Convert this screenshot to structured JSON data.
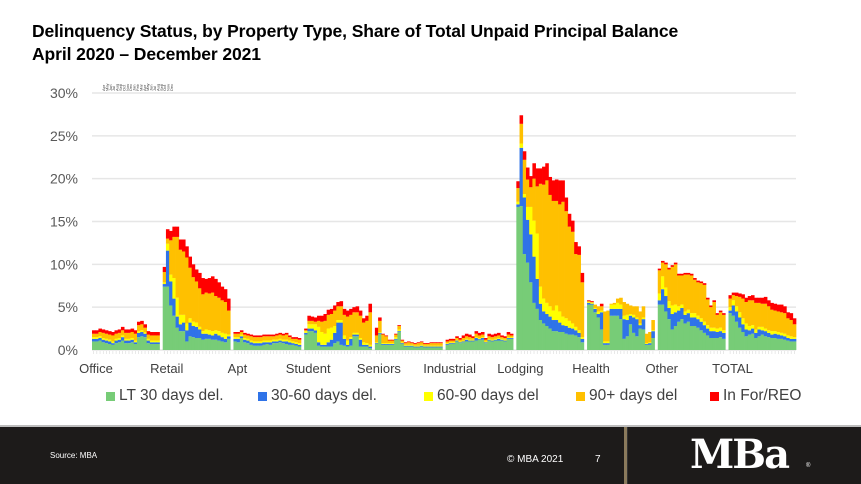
{
  "header": {
    "title_line1": "Delinquency Status, by Property Type, Share of Total Unpaid Principal Balance",
    "title_line2": "April 2020 – December 2021"
  },
  "footer": {
    "source": "Source: MBA",
    "copyright": "© MBA 2021",
    "page_number": "7",
    "logo_text": "MBa",
    "logo_reg": "®"
  },
  "chart_data": {
    "type": "bar",
    "stacked": true,
    "title": "Delinquency Status, by Property Type, Share of Total Unpaid Principal Balance",
    "subtitle": "April 2020 – December 2021",
    "xlabel": "",
    "ylabel": "",
    "ylim": [
      0,
      30
    ],
    "yticks": [
      "0%",
      "5%",
      "10%",
      "15%",
      "20%",
      "25%",
      "30%"
    ],
    "ytick_values": [
      0,
      5,
      10,
      15,
      20,
      25,
      30
    ],
    "grid": true,
    "legend_position": "bottom",
    "month_labels": [
      "Apr",
      "May",
      "Jun",
      "Jul",
      "Aug",
      "Sep",
      "Oct",
      "Nov",
      "Dec",
      "Jan",
      "Feb",
      "Mar",
      "Apr",
      "May",
      "Jun",
      "Jul",
      "Aug",
      "Sep",
      "Oct",
      "Nov",
      "Dec"
    ],
    "categories": [
      "Office",
      "Retail",
      "Apt",
      "Student",
      "Seniors",
      "Industrial",
      "Lodging",
      "Health",
      "Other",
      "TOTAL"
    ],
    "series_names": [
      "LT 30 days del.",
      "30-60 days del.",
      "60-90 days del",
      "90+ days del",
      "In For/REO"
    ],
    "series_colors": [
      "#77cc77",
      "#2f73e8",
      "#ffff00",
      "#ffc000",
      "#ff0000"
    ],
    "groups": [
      {
        "name": "Office",
        "LT30": [
          1.0,
          1.0,
          1.1,
          0.9,
          0.8,
          0.7,
          0.6,
          0.8,
          0.9,
          1.1,
          0.8,
          0.8,
          0.9,
          0.7,
          1.5,
          1.6,
          1.5,
          0.8,
          0.7,
          0.7,
          0.7
        ],
        "d30_60": [
          0.3,
          0.3,
          0.3,
          0.3,
          0.3,
          0.3,
          0.2,
          0.3,
          0.3,
          0.4,
          0.3,
          0.3,
          0.3,
          0.2,
          0.5,
          0.5,
          0.4,
          0.3,
          0.2,
          0.2,
          0.2
        ],
        "d60_90": [
          0.2,
          0.2,
          0.2,
          0.2,
          0.2,
          0.2,
          0.2,
          0.2,
          0.2,
          0.2,
          0.2,
          0.2,
          0.2,
          0.2,
          0.2,
          0.2,
          0.2,
          0.2,
          0.2,
          0.2,
          0.2
        ],
        "d90p": [
          0.4,
          0.4,
          0.5,
          0.6,
          0.6,
          0.6,
          0.7,
          0.6,
          0.6,
          0.6,
          0.7,
          0.7,
          0.7,
          0.8,
          0.7,
          0.7,
          0.5,
          0.5,
          0.6,
          0.6,
          0.6
        ],
        "reo": [
          0.4,
          0.4,
          0.4,
          0.4,
          0.4,
          0.4,
          0.4,
          0.4,
          0.4,
          0.4,
          0.4,
          0.4,
          0.4,
          0.4,
          0.4,
          0.4,
          0.4,
          0.4,
          0.4,
          0.4,
          0.4
        ]
      },
      {
        "name": "Retail",
        "LT30": [
          7.4,
          7.4,
          5.2,
          4.0,
          2.6,
          2.2,
          2.2,
          1.0,
          1.6,
          1.5,
          1.4,
          1.4,
          1.2,
          1.3,
          1.3,
          1.2,
          1.2,
          1.1,
          1.0,
          0.9,
          1.3
        ],
        "d30_60": [
          0.3,
          4.2,
          2.8,
          2.0,
          1.3,
          0.8,
          1.0,
          1.3,
          1.6,
          1.3,
          1.3,
          1.0,
          0.7,
          0.6,
          0.5,
          0.5,
          0.7,
          0.6,
          0.5,
          0.4,
          0.3
        ],
        "d60_90": [
          0.2,
          0.8,
          0.8,
          2.4,
          2.2,
          1.1,
          0.9,
          0.8,
          0.5,
          0.5,
          0.5,
          0.3,
          0.3,
          0.5,
          0.5,
          0.5,
          0.4,
          0.5,
          0.5,
          0.6,
          0.2
        ],
        "d90p": [
          1.2,
          0.6,
          4.0,
          4.8,
          7.1,
          7.6,
          7.4,
          7.7,
          5.9,
          5.2,
          4.8,
          4.5,
          4.3,
          4.3,
          4.3,
          4.5,
          4.0,
          3.9,
          3.8,
          3.7,
          2.8
        ],
        "reo": [
          0.6,
          1.1,
          1.1,
          1.2,
          1.2,
          1.2,
          1.4,
          1.3,
          1.3,
          1.5,
          1.4,
          1.8,
          1.9,
          1.6,
          1.8,
          1.9,
          2.0,
          1.8,
          1.6,
          1.5,
          1.4
        ]
      },
      {
        "name": "Apt",
        "LT30": [
          1.0,
          0.9,
          1.4,
          0.9,
          0.8,
          0.6,
          0.5,
          0.5,
          0.5,
          0.6,
          0.7,
          0.6,
          0.8,
          0.8,
          0.9,
          0.8,
          0.7,
          0.6,
          0.6,
          0.5,
          0.4
        ],
        "d30_60": [
          0.3,
          0.4,
          0.2,
          0.3,
          0.3,
          0.3,
          0.3,
          0.3,
          0.3,
          0.3,
          0.2,
          0.3,
          0.2,
          0.2,
          0.2,
          0.2,
          0.3,
          0.3,
          0.2,
          0.2,
          0.2
        ],
        "d60_90": [
          0.2,
          0.2,
          0.2,
          0.2,
          0.2,
          0.2,
          0.2,
          0.2,
          0.2,
          0.2,
          0.2,
          0.2,
          0.2,
          0.2,
          0.2,
          0.2,
          0.2,
          0.2,
          0.2,
          0.2,
          0.2
        ],
        "d90p": [
          0.4,
          0.4,
          0.3,
          0.4,
          0.4,
          0.5,
          0.5,
          0.5,
          0.5,
          0.5,
          0.5,
          0.5,
          0.4,
          0.5,
          0.5,
          0.5,
          0.6,
          0.4,
          0.3,
          0.4,
          0.4
        ],
        "reo": [
          0.2,
          0.2,
          0.2,
          0.2,
          0.2,
          0.2,
          0.2,
          0.2,
          0.2,
          0.2,
          0.2,
          0.2,
          0.2,
          0.2,
          0.2,
          0.2,
          0.2,
          0.2,
          0.2,
          0.2,
          0.2
        ]
      },
      {
        "name": "Student",
        "LT30": [
          1.8,
          2.2,
          2.2,
          2.0,
          0.5,
          0.4,
          0.4,
          0.4,
          0.4,
          0.8,
          1.0,
          0.6,
          0.5,
          0.4,
          0.5,
          1.6,
          1.6,
          0.4,
          0.4,
          0.4,
          0.2
        ],
        "d30_60": [
          0.2,
          0.3,
          0.3,
          0.3,
          0.4,
          0.2,
          0.2,
          0.5,
          0.8,
          1.2,
          2.2,
          2.6,
          0.8,
          0.2,
          0.8,
          0.2,
          0.2,
          0.8,
          0.2,
          0.2,
          0.2
        ],
        "d60_90": [
          0.2,
          0.5,
          0.5,
          0.7,
          1.8,
          1.5,
          1.3,
          1.6,
          1.4,
          0.8,
          0.3,
          0.3,
          0.4,
          0.5,
          0.2,
          0.2,
          0.2,
          0.2,
          0.3,
          0.2,
          0.2
        ],
        "d90p": [
          0.1,
          0.4,
          0.4,
          0.3,
          0.7,
          1.2,
          1.5,
          1.6,
          1.6,
          1.8,
          1.6,
          1.6,
          2.4,
          2.8,
          2.6,
          2.4,
          2.4,
          2.6,
          2.3,
          2.6,
          3.8
        ],
        "reo": [
          0.2,
          0.6,
          0.5,
          0.5,
          0.6,
          0.7,
          0.8,
          0.6,
          0.6,
          0.6,
          0.5,
          0.6,
          0.7,
          0.7,
          0.7,
          0.6,
          0.7,
          0.6,
          0.5,
          0.6,
          1.0
        ]
      },
      {
        "name": "Seniors",
        "LT30": [
          0.7,
          1.9,
          0.6,
          0.6,
          0.6,
          0.6,
          1.2,
          2.1,
          0.7,
          0.4,
          0.4,
          0.4,
          0.3,
          0.3,
          0.4,
          0.3,
          0.3,
          0.3,
          0.3,
          0.3,
          0.3
        ],
        "d30_60": [
          0.1,
          0.1,
          0.1,
          0.1,
          0.1,
          0.1,
          0.1,
          0.1,
          0.1,
          0.1,
          0.1,
          0.1,
          0.1,
          0.1,
          0.1,
          0.1,
          0.1,
          0.1,
          0.1,
          0.1,
          0.1
        ],
        "d60_90": [
          0.1,
          0.1,
          0.1,
          0.1,
          0.1,
          0.1,
          0.2,
          0.2,
          0.1,
          0.1,
          0.1,
          0.1,
          0.1,
          0.1,
          0.1,
          0.1,
          0.1,
          0.1,
          0.1,
          0.1,
          0.1
        ],
        "d90p": [
          0.8,
          1.3,
          1.0,
          0.8,
          0.3,
          0.3,
          0.3,
          0.4,
          0.2,
          0.2,
          0.3,
          0.2,
          0.2,
          0.3,
          0.3,
          0.2,
          0.2,
          0.3,
          0.3,
          0.3,
          0.3
        ],
        "reo": [
          0.9,
          0.4,
          0.1,
          0.1,
          0.1,
          0.1,
          0.1,
          0.1,
          0.1,
          0.1,
          0.1,
          0.1,
          0.1,
          0.1,
          0.1,
          0.1,
          0.1,
          0.1,
          0.1,
          0.1,
          0.1
        ]
      },
      {
        "name": "Industrial",
        "LT30": [
          0.6,
          0.7,
          0.7,
          1.0,
          0.8,
          0.9,
          1.0,
          1.0,
          1.0,
          1.1,
          1.2,
          1.2,
          0.8,
          1.1,
          1.0,
          1.1,
          1.1,
          1.1,
          1.0,
          1.3,
          1.3
        ],
        "d30_60": [
          0.1,
          0.1,
          0.1,
          0.1,
          0.1,
          0.1,
          0.2,
          0.1,
          0.1,
          0.3,
          0.1,
          0.2,
          0.1,
          0.1,
          0.1,
          0.1,
          0.2,
          0.1,
          0.1,
          0.1,
          0.1
        ],
        "d60_90": [
          0.1,
          0.1,
          0.1,
          0.1,
          0.1,
          0.1,
          0.1,
          0.1,
          0.1,
          0.1,
          0.1,
          0.1,
          0.1,
          0.1,
          0.1,
          0.1,
          0.1,
          0.1,
          0.1,
          0.1,
          0.1
        ],
        "d90p": [
          0.2,
          0.2,
          0.2,
          0.2,
          0.2,
          0.3,
          0.3,
          0.3,
          0.2,
          0.4,
          0.3,
          0.3,
          0.2,
          0.3,
          0.3,
          0.3,
          0.3,
          0.2,
          0.2,
          0.3,
          0.2
        ],
        "reo": [
          0.2,
          0.2,
          0.2,
          0.2,
          0.2,
          0.3,
          0.3,
          0.3,
          0.2,
          0.3,
          0.3,
          0.3,
          0.2,
          0.3,
          0.3,
          0.3,
          0.3,
          0.2,
          0.2,
          0.3,
          0.2
        ]
      },
      {
        "name": "Lodging",
        "LT30": [
          16.7,
          16.8,
          11.2,
          10.2,
          7.9,
          5.5,
          4.8,
          3.5,
          3.1,
          2.8,
          2.5,
          2.2,
          2.2,
          2.1,
          2.1,
          1.9,
          1.8,
          1.8,
          1.7,
          1.5,
          0.9
        ],
        "d30_60": [
          0.3,
          6.8,
          6.6,
          5.0,
          5.6,
          5.4,
          3.5,
          1.9,
          1.4,
          1.4,
          1.4,
          1.3,
          1.3,
          1.1,
          0.8,
          0.9,
          0.8,
          0.7,
          0.6,
          0.5,
          0.4
        ],
        "d60_90": [
          0.3,
          0.5,
          0.4,
          1.5,
          3.2,
          4.2,
          5.3,
          2.0,
          1.5,
          1.3,
          1.2,
          1.1,
          1.7,
          1.3,
          1.0,
          0.9,
          0.8,
          0.6,
          0.4,
          0.3,
          0.2
        ],
        "d90p": [
          1.6,
          2.3,
          4.0,
          3.2,
          2.3,
          4.9,
          5.5,
          12.0,
          13.3,
          14.3,
          13.0,
          12.8,
          12.2,
          12.5,
          13.4,
          12.5,
          11.0,
          10.7,
          8.5,
          8.8,
          6.4
        ],
        "reo": [
          0.8,
          1.0,
          1.0,
          1.4,
          1.3,
          1.8,
          2.1,
          1.8,
          2.1,
          2.0,
          2.1,
          2.4,
          2.5,
          2.8,
          2.5,
          1.6,
          1.5,
          1.3,
          1.4,
          1.0,
          1.1
        ]
      },
      {
        "name": "Health",
        "LT30": [
          5.3,
          5.3,
          4.4,
          3.8,
          2.4,
          0.6,
          0.6,
          4.0,
          4.0,
          4.0,
          3.6,
          1.3,
          1.6,
          3.0,
          2.0,
          1.6,
          2.5,
          2.4,
          0.6,
          0.6,
          1.4
        ],
        "d30_60": [
          0.2,
          0.1,
          0.4,
          0.4,
          2.0,
          0.2,
          0.2,
          0.8,
          0.8,
          0.8,
          1.2,
          2.3,
          1.9,
          1.0,
          1.8,
          2.0,
          0.4,
          1.2,
          0.1,
          0.2,
          0.8
        ],
        "d60_90": [
          0.1,
          0.1,
          0.1,
          0.3,
          0.2,
          0.2,
          0.2,
          0.5,
          0.5,
          0.7,
          0.5,
          0.4,
          0.6,
          0.2,
          0.3,
          0.2,
          0.2,
          0.2,
          0.1,
          0.1,
          0.1
        ],
        "d90p": [
          0.1,
          0.1,
          0.4,
          0.6,
          0.5,
          3.5,
          3.6,
          0.1,
          0.2,
          0.5,
          0.8,
          1.6,
          1.3,
          1.0,
          1.0,
          1.3,
          1.4,
          1.3,
          1.1,
          1.2,
          1.2
        ],
        "reo": [
          0.1,
          0.1,
          0.0,
          0.0,
          0.3,
          0.0,
          0.0,
          0.0,
          0.0,
          0.0,
          0.0,
          0.0,
          0.0,
          0.0,
          0.0,
          0.0,
          0.0,
          0.0,
          0.0,
          0.0,
          0.0
        ]
      },
      {
        "name": "Other",
        "LT30": [
          5.3,
          5.3,
          4.5,
          3.6,
          2.4,
          2.8,
          3.3,
          3.6,
          3.1,
          3.3,
          2.8,
          2.8,
          2.6,
          2.3,
          2.0,
          1.7,
          1.4,
          1.4,
          1.4,
          1.5,
          1.3
        ],
        "d30_60": [
          0.5,
          1.8,
          1.8,
          1.3,
          1.8,
          1.6,
          1.3,
          1.3,
          1.0,
          1.0,
          1.0,
          1.0,
          1.0,
          1.0,
          0.9,
          0.8,
          0.8,
          0.8,
          0.7,
          0.7,
          0.7
        ],
        "d60_90": [
          0.8,
          1.5,
          1.0,
          0.8,
          1.0,
          0.9,
          0.5,
          0.4,
          0.4,
          0.4,
          0.5,
          0.5,
          0.4,
          0.4,
          0.4,
          0.4,
          0.4,
          0.4,
          0.4,
          0.4,
          0.3
        ],
        "d90p": [
          2.7,
          1.6,
          2.7,
          3.7,
          4.5,
          4.7,
          3.6,
          3.4,
          4.3,
          4.1,
          4.4,
          3.9,
          3.9,
          4.1,
          4.3,
          3.0,
          2.4,
          3.0,
          1.6,
          1.8,
          1.8
        ],
        "reo": [
          0.2,
          0.2,
          0.2,
          0.2,
          0.2,
          0.2,
          0.2,
          0.2,
          0.2,
          0.2,
          0.2,
          0.2,
          0.2,
          0.2,
          0.2,
          0.2,
          0.2,
          0.2,
          0.2,
          0.2,
          0.2
        ]
      },
      {
        "name": "TOTAL",
        "LT30": [
          4.3,
          4.0,
          3.3,
          2.6,
          2.1,
          1.6,
          1.8,
          1.9,
          1.4,
          1.6,
          1.8,
          1.6,
          1.5,
          1.4,
          1.4,
          1.3,
          1.3,
          1.2,
          1.1,
          1.0,
          1.0
        ],
        "d30_60": [
          0.3,
          1.2,
          1.2,
          1.2,
          0.9,
          0.8,
          0.5,
          0.6,
          0.6,
          0.8,
          0.5,
          0.6,
          0.5,
          0.4,
          0.5,
          0.5,
          0.4,
          0.4,
          0.3,
          0.3,
          0.3
        ],
        "d60_90": [
          0.4,
          0.6,
          0.6,
          0.6,
          0.7,
          0.7,
          0.5,
          0.4,
          0.4,
          0.3,
          0.4,
          0.3,
          0.3,
          0.4,
          0.3,
          0.3,
          0.3,
          0.3,
          0.3,
          0.3,
          0.2
        ],
        "d90p": [
          1.0,
          0.6,
          1.2,
          1.8,
          2.3,
          2.5,
          3.0,
          2.9,
          3.1,
          2.8,
          2.7,
          2.9,
          2.8,
          2.5,
          2.4,
          2.4,
          2.4,
          2.4,
          2.0,
          1.9,
          1.5
        ],
        "reo": [
          0.4,
          0.3,
          0.4,
          0.4,
          0.5,
          0.5,
          0.5,
          0.6,
          0.6,
          0.6,
          0.7,
          0.8,
          0.7,
          0.8,
          0.8,
          0.8,
          0.9,
          0.8,
          0.7,
          0.8,
          0.7
        ]
      }
    ]
  }
}
